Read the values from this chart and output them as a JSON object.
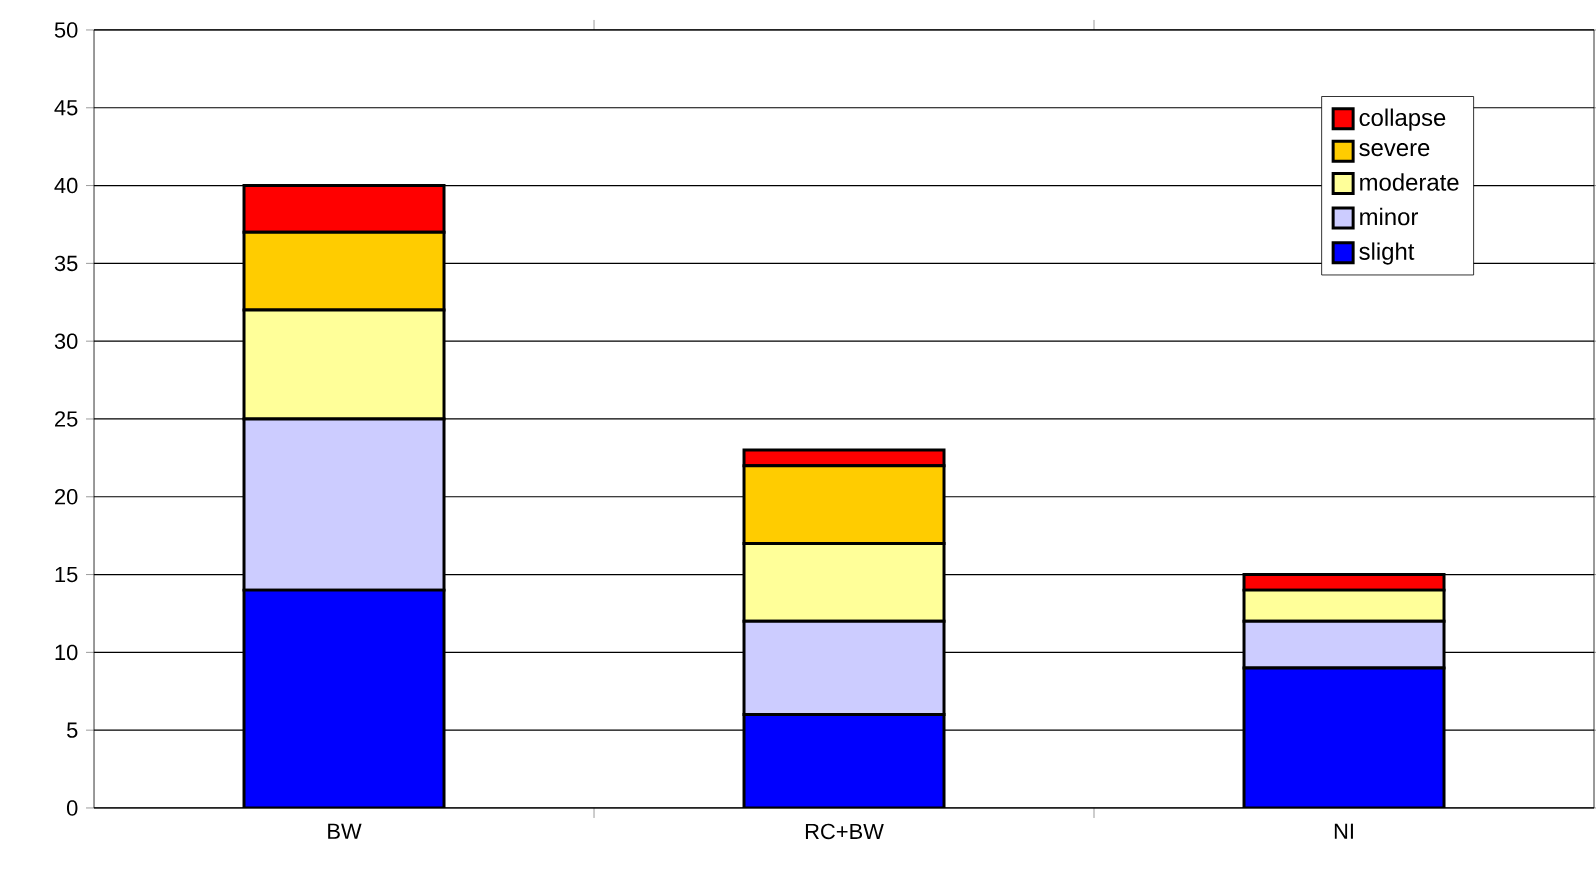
{
  "chart_data": {
    "type": "bar",
    "stacked": true,
    "categories": [
      "BW",
      "RC+BW",
      "NI"
    ],
    "series": [
      {
        "name": "slight",
        "color": "#0000ff",
        "values": [
          14,
          6,
          9
        ]
      },
      {
        "name": "minor",
        "color": "#ccccff",
        "values": [
          11,
          6,
          3
        ]
      },
      {
        "name": "moderate",
        "color": "#ffff99",
        "values": [
          7,
          5,
          2
        ]
      },
      {
        "name": "severe",
        "color": "#ffcc00",
        "values": [
          5,
          5,
          0
        ]
      },
      {
        "name": "collapse",
        "color": "#ff0000",
        "values": [
          3,
          1,
          1
        ]
      }
    ],
    "ylim": [
      0,
      50
    ],
    "yticks": [
      0,
      5,
      10,
      15,
      20,
      25,
      30,
      35,
      40,
      45,
      50
    ],
    "grid": "y",
    "legend": "top right"
  }
}
